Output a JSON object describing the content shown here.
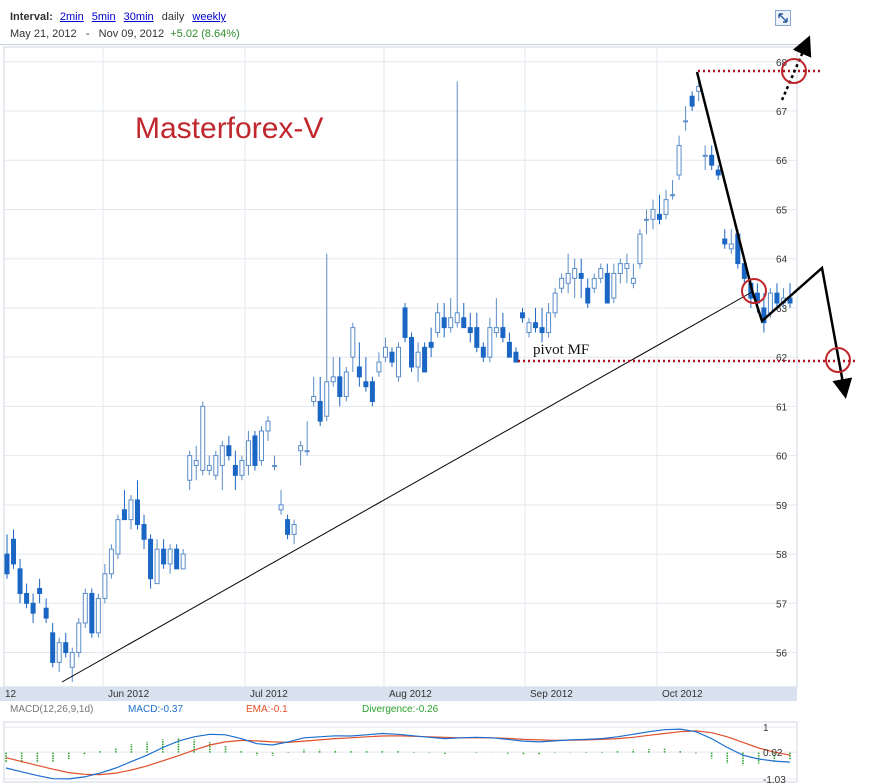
{
  "header": {
    "interval_label": "Interval:",
    "intervals": [
      "2min",
      "5min",
      "30min",
      "daily",
      "weekly"
    ],
    "current_interval": "daily",
    "date_from": "May 21, 2012",
    "date_sep": "-",
    "date_to": "Nov 09, 2012",
    "change": "+5.02 (8.64%)"
  },
  "annotations": {
    "watermark": "Masterforex-V",
    "pivot_label": "pivot MF"
  },
  "colors": {
    "up": "#5b8dc8",
    "down": "#1a66c4",
    "watermark": "#c0272d",
    "dotted_level": "#b01020",
    "circle": "#c0272d",
    "macd_line": "#1c6fd1",
    "ema_line": "#e0502a",
    "divergence": "#2aa02a"
  },
  "chart_data": [
    {
      "type": "candlestick",
      "y_tick_labels": [
        "56",
        "57",
        "58",
        "59",
        "60",
        "61",
        "62",
        "63",
        "64",
        "65",
        "66",
        "67",
        "68"
      ],
      "ylim": [
        55.3,
        68.3
      ],
      "x_tick_labels": [
        "12",
        "Jun 2012",
        "Jul 2012",
        "Aug 2012",
        "Sep 2012",
        "Oct 2012"
      ],
      "grid": true,
      "candles": [
        [
          58.0,
          58.4,
          57.5,
          57.6
        ],
        [
          58.3,
          58.5,
          57.7,
          57.8
        ],
        [
          57.7,
          57.9,
          57.0,
          57.2
        ],
        [
          57.2,
          57.4,
          56.9,
          57.0
        ],
        [
          57.0,
          57.2,
          56.6,
          56.8
        ],
        [
          57.3,
          57.5,
          57.0,
          57.2
        ],
        [
          56.9,
          57.1,
          56.6,
          56.7
        ],
        [
          56.4,
          56.6,
          55.7,
          55.8
        ],
        [
          55.8,
          56.3,
          55.6,
          56.2
        ],
        [
          56.2,
          56.4,
          55.9,
          56.0
        ],
        [
          55.7,
          56.1,
          55.4,
          56.0
        ],
        [
          56.0,
          56.7,
          55.9,
          56.6
        ],
        [
          56.6,
          57.3,
          56.5,
          57.2
        ],
        [
          57.2,
          57.3,
          56.3,
          56.4
        ],
        [
          56.4,
          57.2,
          56.3,
          57.1
        ],
        [
          57.1,
          57.8,
          57.0,
          57.6
        ],
        [
          57.6,
          58.2,
          57.5,
          58.1
        ],
        [
          58.0,
          58.8,
          57.9,
          58.7
        ],
        [
          58.9,
          59.3,
          58.7,
          58.7
        ],
        [
          58.7,
          59.2,
          58.5,
          59.1
        ],
        [
          59.1,
          59.5,
          58.5,
          58.6
        ],
        [
          58.6,
          58.8,
          58.1,
          58.3
        ],
        [
          58.3,
          58.4,
          57.3,
          57.5
        ],
        [
          57.4,
          58.3,
          57.4,
          58.1
        ],
        [
          58.1,
          58.3,
          57.7,
          57.8
        ],
        [
          57.8,
          58.2,
          57.6,
          58.1
        ],
        [
          58.1,
          58.2,
          57.7,
          57.7
        ],
        [
          57.7,
          58.1,
          57.7,
          58.0
        ],
        [
          59.5,
          60.1,
          59.3,
          60.0
        ],
        [
          59.8,
          60.2,
          59.5,
          59.9
        ],
        [
          59.7,
          61.1,
          59.6,
          61.0
        ],
        [
          59.7,
          60.0,
          59.6,
          59.8
        ],
        [
          59.6,
          60.1,
          59.5,
          60.0
        ],
        [
          59.8,
          60.3,
          59.3,
          60.2
        ],
        [
          60.2,
          60.4,
          59.9,
          60.0
        ],
        [
          59.8,
          60.1,
          59.3,
          59.6
        ],
        [
          59.6,
          60.0,
          59.5,
          59.9
        ],
        [
          59.8,
          60.5,
          59.6,
          60.3
        ],
        [
          60.4,
          60.5,
          59.7,
          59.8
        ],
        [
          59.9,
          60.6,
          59.8,
          60.5
        ],
        [
          60.5,
          60.8,
          60.3,
          60.7
        ],
        [
          59.8,
          60.0,
          59.7,
          59.8
        ],
        [
          58.9,
          59.3,
          58.8,
          59.0
        ],
        [
          58.7,
          58.8,
          58.3,
          58.4
        ],
        [
          58.4,
          58.7,
          58.2,
          58.6
        ],
        [
          60.1,
          60.3,
          59.8,
          60.2
        ],
        [
          60.1,
          60.7,
          60.0,
          60.1
        ],
        [
          61.1,
          61.6,
          61.0,
          61.2
        ],
        [
          61.1,
          61.6,
          60.6,
          60.7
        ],
        [
          60.8,
          64.1,
          60.7,
          61.5
        ],
        [
          61.5,
          62.0,
          61.4,
          61.6
        ],
        [
          61.6,
          62.0,
          61.0,
          61.2
        ],
        [
          61.2,
          61.8,
          61.1,
          61.7
        ],
        [
          62.0,
          62.7,
          61.7,
          62.6
        ],
        [
          61.8,
          62.3,
          61.4,
          61.6
        ],
        [
          61.5,
          62.0,
          61.3,
          61.4
        ],
        [
          61.5,
          61.6,
          61.0,
          61.1
        ],
        [
          61.7,
          62.1,
          61.6,
          61.9
        ],
        [
          62.0,
          62.4,
          61.9,
          62.2
        ],
        [
          62.1,
          62.2,
          61.8,
          61.9
        ],
        [
          61.6,
          62.3,
          61.5,
          62.2
        ],
        [
          63.0,
          63.1,
          62.3,
          62.4
        ],
        [
          62.4,
          62.5,
          61.7,
          61.8
        ],
        [
          61.8,
          62.3,
          61.5,
          62.1
        ],
        [
          62.2,
          62.3,
          61.7,
          61.7
        ],
        [
          62.3,
          62.6,
          62.0,
          62.2
        ],
        [
          62.5,
          63.1,
          62.4,
          62.9
        ],
        [
          62.8,
          63.1,
          62.4,
          62.6
        ],
        [
          62.6,
          63.2,
          62.5,
          62.8
        ],
        [
          62.7,
          67.6,
          62.6,
          62.9
        ],
        [
          62.8,
          63.1,
          62.6,
          62.6
        ],
        [
          62.6,
          62.9,
          62.3,
          62.5
        ],
        [
          62.6,
          62.9,
          62.1,
          62.2
        ],
        [
          62.2,
          62.3,
          61.9,
          62.0
        ],
        [
          62.0,
          62.8,
          61.9,
          62.6
        ],
        [
          62.5,
          63.2,
          62.4,
          62.6
        ],
        [
          62.6,
          62.9,
          62.3,
          62.4
        ],
        [
          62.3,
          62.5,
          62.0,
          62.0
        ],
        [
          62.1,
          62.2,
          61.9,
          61.9
        ],
        [
          62.9,
          63.0,
          62.7,
          62.8
        ],
        [
          62.5,
          62.8,
          62.4,
          62.7
        ],
        [
          62.7,
          63.0,
          62.5,
          62.6
        ],
        [
          62.6,
          63.0,
          62.3,
          62.5
        ],
        [
          62.5,
          63.1,
          62.4,
          62.9
        ],
        [
          62.9,
          63.4,
          62.8,
          63.3
        ],
        [
          63.4,
          63.7,
          63.3,
          63.6
        ],
        [
          63.5,
          64.1,
          63.3,
          63.7
        ],
        [
          63.6,
          64.0,
          63.2,
          63.8
        ],
        [
          63.7,
          64.0,
          63.2,
          63.6
        ],
        [
          63.4,
          63.6,
          63.0,
          63.1
        ],
        [
          63.4,
          63.7,
          63.3,
          63.6
        ],
        [
          63.6,
          63.9,
          63.5,
          63.8
        ],
        [
          63.7,
          63.9,
          63.1,
          63.1
        ],
        [
          63.2,
          63.9,
          63.1,
          63.7
        ],
        [
          63.7,
          64.0,
          63.5,
          63.9
        ],
        [
          63.8,
          64.1,
          63.5,
          63.9
        ],
        [
          63.5,
          63.9,
          63.4,
          63.6
        ],
        [
          63.9,
          64.6,
          63.8,
          64.5
        ],
        [
          64.8,
          65.0,
          64.5,
          64.8
        ],
        [
          64.8,
          65.2,
          64.6,
          65.0
        ],
        [
          64.9,
          65.3,
          64.7,
          64.8
        ],
        [
          64.9,
          65.4,
          64.8,
          65.2
        ],
        [
          65.3,
          65.6,
          65.2,
          65.3
        ],
        [
          65.7,
          66.5,
          65.6,
          66.3
        ],
        [
          66.8,
          67.1,
          66.6,
          66.8
        ],
        [
          67.3,
          67.4,
          67.0,
          67.1
        ],
        [
          67.4,
          67.7,
          67.2,
          67.5
        ],
        [
          66.1,
          66.3,
          65.8,
          66.1
        ],
        [
          66.1,
          66.3,
          65.8,
          65.9
        ],
        [
          65.8,
          65.9,
          65.6,
          65.7
        ],
        [
          64.4,
          64.6,
          64.2,
          64.3
        ],
        [
          64.2,
          64.6,
          64.1,
          64.3
        ],
        [
          64.5,
          64.6,
          63.8,
          63.9
        ],
        [
          63.9,
          64.0,
          63.5,
          63.6
        ],
        [
          63.5,
          63.6,
          63.0,
          63.2
        ],
        [
          63.3,
          63.5,
          62.9,
          63.1
        ],
        [
          63.0,
          63.3,
          62.5,
          62.7
        ],
        [
          62.9,
          63.4,
          62.8,
          63.3
        ],
        [
          63.3,
          63.5,
          63.0,
          63.1
        ],
        [
          63.1,
          63.4,
          63.0,
          63.2
        ],
        [
          63.2,
          63.5,
          63.0,
          63.1
        ]
      ]
    },
    {
      "type": "line",
      "title": "MACD(12,26,9,1d)",
      "series": [
        {
          "name": "MACD:-0.37",
          "values": [
            -0.6,
            -0.75,
            -0.9,
            -1.02,
            -1.03,
            -0.95,
            -0.8,
            -0.6,
            -0.35,
            -0.1,
            0.2,
            0.45,
            0.62,
            0.72,
            0.7,
            0.55,
            0.35,
            0.3,
            0.42,
            0.58,
            0.62,
            0.66,
            0.65,
            0.7,
            0.75,
            0.72,
            0.66,
            0.6,
            0.55,
            0.58,
            0.6,
            0.58,
            0.52,
            0.45,
            0.42,
            0.46,
            0.5,
            0.52,
            0.55,
            0.62,
            0.72,
            0.82,
            0.9,
            0.92,
            0.82,
            0.55,
            0.2,
            -0.1,
            -0.25,
            -0.33,
            -0.37
          ]
        },
        {
          "name": "EMA:-0.1",
          "values": [
            -0.2,
            -0.35,
            -0.5,
            -0.65,
            -0.78,
            -0.85,
            -0.86,
            -0.8,
            -0.68,
            -0.52,
            -0.32,
            -0.12,
            0.1,
            0.3,
            0.42,
            0.48,
            0.46,
            0.42,
            0.4,
            0.45,
            0.5,
            0.55,
            0.58,
            0.62,
            0.65,
            0.66,
            0.64,
            0.62,
            0.6,
            0.58,
            0.58,
            0.58,
            0.56,
            0.52,
            0.5,
            0.48,
            0.49,
            0.5,
            0.52,
            0.55,
            0.6,
            0.68,
            0.75,
            0.82,
            0.85,
            0.78,
            0.62,
            0.4,
            0.18,
            0.02,
            -0.1
          ]
        },
        {
          "name": "Divergence:-0.26",
          "type": "bar",
          "values": [
            -0.4,
            -0.4,
            -0.4,
            -0.37,
            -0.25,
            -0.1,
            0.06,
            0.2,
            0.33,
            0.42,
            0.52,
            0.57,
            0.52,
            0.42,
            0.28,
            0.07,
            -0.11,
            -0.12,
            0.02,
            0.13,
            0.12,
            0.11,
            0.07,
            0.08,
            0.1,
            0.06,
            0.02,
            -0.02,
            -0.05,
            0.0,
            0.02,
            0.0,
            -0.04,
            -0.07,
            -0.08,
            -0.02,
            0.01,
            0.02,
            0.03,
            0.07,
            0.12,
            0.14,
            0.15,
            0.1,
            -0.03,
            -0.23,
            -0.42,
            -0.5,
            -0.43,
            -0.35,
            -0.26
          ]
        }
      ],
      "y_tick_labels": [
        "1",
        "0.02",
        "-1.03"
      ],
      "ylim": [
        -1.15,
        1.2
      ]
    }
  ]
}
